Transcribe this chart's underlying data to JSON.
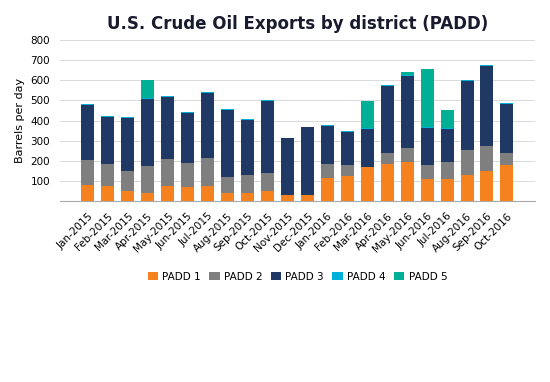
{
  "title": "U.S. Crude Oil Exports by district (PADD)",
  "ylabel": "Barrels per day",
  "categories": [
    "Jan-2015",
    "Feb-2015",
    "Mar-2015",
    "Apr-2015",
    "May-2015",
    "Jun-2015",
    "Jul-2015",
    "Aug-2015",
    "Sep-2015",
    "Oct-2015",
    "Nov-2015",
    "Dec-2015",
    "Jan-2016",
    "Feb-2016",
    "Mar-2016",
    "Apr-2016",
    "May-2016",
    "Jun-2016",
    "Jul-2016",
    "Aug-2016",
    "Sep-2016",
    "Oct-2016"
  ],
  "padd1": [
    80,
    75,
    50,
    40,
    75,
    70,
    75,
    40,
    42,
    50,
    30,
    30,
    115,
    125,
    170,
    185,
    195,
    110,
    110,
    130,
    150,
    180
  ],
  "padd2": [
    125,
    110,
    100,
    135,
    135,
    120,
    140,
    80,
    90,
    90,
    0,
    0,
    70,
    55,
    0,
    55,
    70,
    70,
    85,
    125,
    125,
    60
  ],
  "padd3": [
    275,
    235,
    265,
    330,
    305,
    248,
    320,
    335,
    273,
    355,
    285,
    340,
    190,
    165,
    190,
    330,
    355,
    185,
    165,
    340,
    395,
    245
  ],
  "padd4": [
    5,
    5,
    5,
    5,
    5,
    5,
    5,
    5,
    5,
    5,
    0,
    0,
    5,
    5,
    5,
    5,
    5,
    5,
    5,
    5,
    5,
    5
  ],
  "padd5": [
    0,
    0,
    0,
    90,
    0,
    0,
    0,
    0,
    0,
    0,
    0,
    0,
    0,
    0,
    130,
    0,
    15,
    285,
    90,
    0,
    0,
    0
  ],
  "colors": {
    "padd1": "#f5821e",
    "padd2": "#7f7f7f",
    "padd3": "#1f3864",
    "padd4": "#00b0d8",
    "padd5": "#00b096"
  },
  "ylim": [
    0,
    800
  ],
  "yticks": [
    0,
    100,
    200,
    300,
    400,
    500,
    600,
    700,
    800
  ],
  "background_color": "#ffffff",
  "grid_color": "#d9d9d9",
  "title_fontsize": 12,
  "label_fontsize": 8,
  "tick_fontsize": 7.5
}
